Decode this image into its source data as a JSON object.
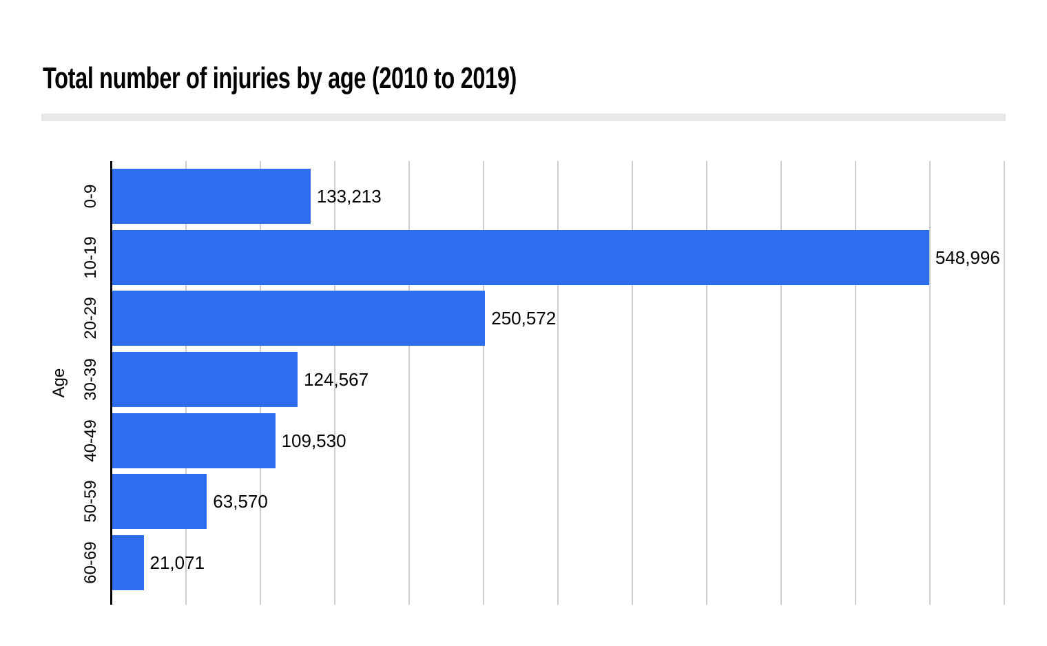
{
  "chart_data": {
    "type": "bar",
    "orientation": "horizontal",
    "title": "Total number of injuries by age (2010 to 2019)",
    "xlabel": "",
    "ylabel": "Age",
    "categories": [
      "0-9",
      "10-19",
      "20-29",
      "30-39",
      "40-49",
      "50-59",
      "60-69"
    ],
    "values": [
      133213,
      548996,
      250572,
      124567,
      109530,
      63570,
      21071
    ],
    "value_labels": [
      "133,213",
      "548,996",
      "250,572",
      "124,567",
      "109,530",
      "63,570",
      "21,071"
    ],
    "xlim": [
      0,
      600000
    ],
    "grid_interval": 50000,
    "grid": "vertical",
    "legend": "none",
    "bar_color": "#2e6dee",
    "grid_color": "#cccccc",
    "axis_color": "#000000",
    "label_color": "#000000"
  },
  "decor": {
    "divider_color": "#e8e8e8",
    "background_color": "#ffffff"
  }
}
